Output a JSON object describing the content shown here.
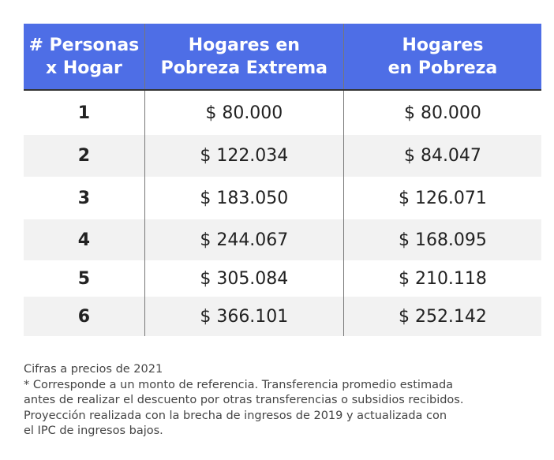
{
  "table": {
    "header": [
      [
        "# Personas",
        "x Hogar"
      ],
      [
        "Hogares en",
        "Pobreza Extrema"
      ],
      [
        "Hogares",
        "en Pobreza"
      ]
    ],
    "rows": [
      [
        "1",
        "$ 80.000",
        "$ 80.000"
      ],
      [
        "2",
        "$ 122.034",
        "$ 84.047"
      ],
      [
        "3",
        "$ 183.050",
        "$ 126.071"
      ],
      [
        "4",
        "$ 244.067",
        "$ 168.095"
      ],
      [
        "5",
        "$ 305.084",
        "$ 210.118"
      ],
      [
        "6",
        "$ 366.101",
        "$ 252.142"
      ]
    ]
  },
  "notes": [
    "Cifras a precios de 2021",
    "* Corresponde a un monto de referencia. Transferencia promedio estimada",
    "antes de realizar el descuento por otras transferencias o subsidios recibidos.",
    "Proyección realizada con la brecha de ingresos de 2019 y actualizada con",
    "el IPC de ingresos bajos."
  ]
}
